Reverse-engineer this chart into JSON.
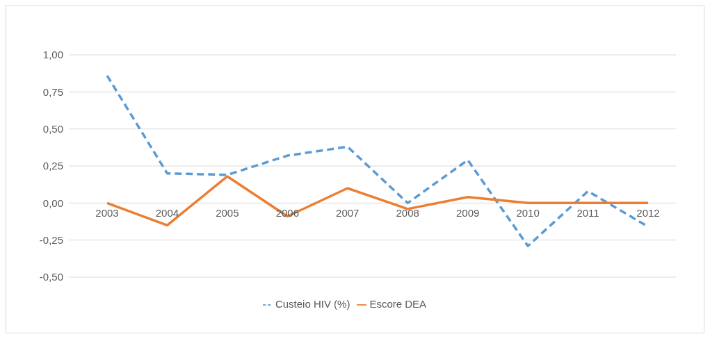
{
  "chart_data": {
    "type": "line",
    "categories": [
      "2003",
      "2004",
      "2005",
      "2006",
      "2007",
      "2008",
      "2009",
      "2010",
      "2011",
      "2012"
    ],
    "series": [
      {
        "name": "Custeio HIV (%)",
        "color": "#5b9bd5",
        "line_style": "dashed",
        "values": [
          0.86,
          0.2,
          0.19,
          0.32,
          0.38,
          0.0,
          0.29,
          -0.29,
          0.08,
          -0.16
        ]
      },
      {
        "name": "Escore DEA",
        "color": "#ed7d31",
        "line_style": "solid",
        "values": [
          0.0,
          -0.15,
          0.18,
          -0.09,
          0.1,
          -0.04,
          0.04,
          0.0,
          0.0,
          0.0
        ]
      }
    ],
    "ylim": [
      -0.5,
      1.0
    ],
    "yticks": [
      {
        "value": -0.5,
        "label": "-0,50"
      },
      {
        "value": -0.25,
        "label": "-0,25"
      },
      {
        "value": 0,
        "label": "0,00"
      },
      {
        "value": 0.25,
        "label": "0,25"
      },
      {
        "value": 0.5,
        "label": "0,50"
      },
      {
        "value": 0.75,
        "label": "0,75"
      },
      {
        "value": 1.0,
        "label": "1,00"
      }
    ],
    "grid": "y",
    "legend": "bottom",
    "marker": "none"
  }
}
